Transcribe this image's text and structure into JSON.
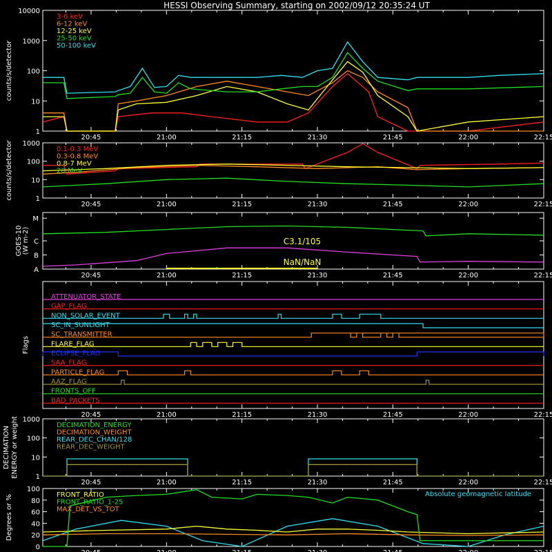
{
  "title": "HESSI Observing Summary, starting on 2002/09/12 20:35:24 UT",
  "time_ticks": [
    "20:45",
    "21:00",
    "21:15",
    "21:30",
    "21:45",
    "22:00",
    "22:15"
  ],
  "colors": {
    "c1": "#ff2020",
    "c2": "#ff8a20",
    "c3": "#ffff30",
    "c4": "#20e020",
    "c5": "#30e0f0",
    "magenta": "#e040e0",
    "blue": "#2030ff",
    "olive": "#a09030",
    "axis": "#ffffff"
  },
  "chart_data": [
    {
      "id": "lc_low",
      "type": "line",
      "ylabel": "counts/s/detector",
      "yscale": "log",
      "ylim": [
        1,
        10000
      ],
      "y_ticks": [
        "1",
        "10",
        "100",
        "1000",
        "10000"
      ],
      "legend": [
        "3-6 keV",
        "6-12 keV",
        "12-25 keV",
        "25-50 keV",
        "50-100 keV"
      ],
      "xlim": [
        20.59,
        22.25
      ],
      "series": [
        {
          "name": "3-6 keV",
          "color": "c1",
          "x": [
            20.59,
            20.66,
            20.67,
            20.83,
            20.84,
            20.95,
            21.05,
            21.15,
            21.3,
            21.4,
            21.47,
            21.55,
            21.6,
            21.67,
            21.7,
            21.8,
            21.83,
            22.0,
            22.25
          ],
          "y": [
            2,
            3,
            1,
            1,
            3,
            4,
            4,
            3,
            2,
            2,
            4,
            30,
            80,
            20,
            3,
            1,
            1,
            1,
            2
          ]
        },
        {
          "name": "6-12 keV",
          "color": "c2",
          "x": [
            20.59,
            20.66,
            20.67,
            20.83,
            20.84,
            20.9,
            21.0,
            21.1,
            21.2,
            21.3,
            21.4,
            21.47,
            21.55,
            21.6,
            21.65,
            21.7,
            21.8,
            21.83,
            22.0,
            22.25
          ],
          "y": [
            4,
            4,
            1,
            1,
            8,
            10,
            15,
            30,
            45,
            30,
            20,
            15,
            40,
            100,
            60,
            20,
            6,
            1,
            1,
            1
          ]
        },
        {
          "name": "12-25 keV",
          "color": "c3",
          "x": [
            20.59,
            20.66,
            20.67,
            20.83,
            20.84,
            20.9,
            21.0,
            21.1,
            21.2,
            21.3,
            21.4,
            21.47,
            21.55,
            21.6,
            21.65,
            21.7,
            21.8,
            21.83,
            22.0,
            22.25
          ],
          "y": [
            3,
            3,
            1,
            1,
            5,
            8,
            9,
            15,
            30,
            20,
            8,
            5,
            50,
            200,
            90,
            15,
            3,
            1,
            2,
            3
          ]
        },
        {
          "name": "25-50 keV",
          "color": "c4",
          "x": [
            20.59,
            20.66,
            20.67,
            20.83,
            20.84,
            20.88,
            20.92,
            20.96,
            21.0,
            21.04,
            21.08,
            21.2,
            21.3,
            21.38,
            21.45,
            21.5,
            21.55,
            21.6,
            21.65,
            21.7,
            21.8,
            21.83,
            22.0,
            22.25
          ],
          "y": [
            40,
            40,
            12,
            14,
            16,
            18,
            60,
            20,
            18,
            40,
            25,
            20,
            20,
            25,
            30,
            30,
            60,
            400,
            120,
            45,
            22,
            25,
            25,
            30
          ]
        },
        {
          "name": "50-100 keV",
          "color": "c5",
          "x": [
            20.59,
            20.66,
            20.67,
            20.83,
            20.84,
            20.88,
            20.92,
            20.96,
            21.0,
            21.04,
            21.08,
            21.2,
            21.3,
            21.38,
            21.45,
            21.5,
            21.55,
            21.6,
            21.65,
            21.7,
            21.8,
            21.83,
            22.0,
            22.1,
            22.25
          ],
          "y": [
            60,
            60,
            18,
            20,
            22,
            30,
            120,
            28,
            30,
            70,
            60,
            60,
            60,
            70,
            60,
            100,
            120,
            900,
            200,
            60,
            50,
            60,
            60,
            70,
            80
          ]
        }
      ]
    },
    {
      "id": "lc_high",
      "type": "line",
      "ylabel": "counts/s/detector",
      "yscale": "log",
      "ylim": [
        1,
        1000
      ],
      "y_ticks": [
        "1",
        "10",
        "100",
        "1000"
      ],
      "legend": [
        "0.1-0.3 MeV",
        "0.3-0.8 MeV",
        "0.8-7 MeV",
        "20 MeV"
      ],
      "xlim": [
        20.59,
        22.25
      ],
      "series": [
        {
          "name": "0.1-0.3 MeV",
          "color": "c1",
          "x": [
            20.59,
            20.66,
            20.67,
            20.83,
            20.84,
            21.1,
            21.11,
            21.45,
            21.46,
            21.6,
            21.65,
            21.7,
            21.83,
            21.84,
            22.1,
            22.25
          ],
          "y": [
            60,
            60,
            20,
            30,
            40,
            50,
            70,
            70,
            40,
            300,
            900,
            300,
            40,
            60,
            70,
            80
          ]
        },
        {
          "name": "0.3-0.8 MeV",
          "color": "c2",
          "x": [
            20.59,
            20.7,
            20.9,
            21.1,
            21.3,
            21.5,
            21.7,
            21.83,
            22.0,
            22.25
          ],
          "y": [
            20,
            25,
            45,
            60,
            50,
            40,
            50,
            35,
            40,
            45
          ]
        },
        {
          "name": "0.8-7 MeV",
          "color": "c3",
          "x": [
            20.59,
            20.8,
            21.0,
            21.2,
            21.4,
            21.6,
            21.8,
            22.0,
            22.25
          ],
          "y": [
            30,
            40,
            60,
            70,
            60,
            50,
            45,
            40,
            45
          ]
        },
        {
          "name": "20 MeV",
          "color": "c4",
          "x": [
            20.59,
            20.8,
            21.0,
            21.2,
            21.4,
            21.6,
            21.8,
            22.0,
            22.25
          ],
          "y": [
            4,
            6,
            10,
            12,
            8,
            6,
            5,
            4,
            6
          ]
        }
      ]
    },
    {
      "id": "goes",
      "type": "line",
      "ylabel": "GOES-10",
      "ylabel2": "(W m-2)",
      "y_ticks": [
        "A",
        "B",
        "C",
        "M"
      ],
      "annotations": [
        "C3.1/105",
        "NaN/NaN"
      ],
      "xlim": [
        20.59,
        22.25
      ],
      "series": [
        {
          "name": "",
          "color": "c4",
          "x": [
            20.59,
            20.8,
            21.0,
            21.2,
            21.4,
            21.6,
            21.8,
            21.85,
            21.86,
            22.0,
            22.25
          ],
          "y": [
            2.5,
            2.6,
            2.8,
            3.0,
            3.05,
            2.95,
            2.75,
            2.7,
            2.35,
            2.5,
            2.4
          ]
        },
        {
          "name": "",
          "color": "magenta",
          "x": [
            20.59,
            20.7,
            20.8,
            20.9,
            21.0,
            21.2,
            21.4,
            21.6,
            21.75,
            21.83,
            21.84,
            22.0,
            22.25
          ],
          "y": [
            0.2,
            0.3,
            0.45,
            0.6,
            1.1,
            1.5,
            1.5,
            1.2,
            1.0,
            0.9,
            0.5,
            0.55,
            0.5
          ]
        }
      ]
    },
    {
      "id": "flags",
      "type": "step",
      "ylabel": "Flags",
      "flag_names": [
        "ATTENUATOR_STATE",
        "GAP_FLAG",
        "NON_SOLAR_EVENT",
        "SC_IN_SUNLIGHT",
        "SC_TRANSMITTER",
        "FLARE_FLAG",
        "ECLIPSE_FLAG",
        "SAA_FLAG",
        "PARTICLE_FLAG",
        "AAZ_FLAG",
        "FRONTS_OFF",
        "BAD_PACKETS"
      ],
      "flag_colors": [
        "magenta",
        "c1",
        "c5",
        "c5",
        "c2",
        "c3",
        "blue",
        "c1",
        "c2",
        "olive",
        "c4",
        "c1"
      ],
      "flag_on_intervals": [
        [],
        [],
        [
          [
            20.99,
            21.01
          ],
          [
            21.06,
            21.07
          ],
          [
            21.09,
            21.1
          ],
          [
            21.37,
            21.38
          ],
          [
            21.55,
            21.58
          ],
          [
            21.64,
            21.71
          ]
        ],
        [
          [
            20.59,
            21.85
          ]
        ],
        [
          [
            21.48,
            22.25
          ],
          [
            21.59,
            21.61
          ],
          [
            21.63,
            21.65
          ],
          [
            21.71,
            21.73
          ],
          [
            21.75,
            21.77
          ]
        ],
        [
          [
            21.08,
            21.1
          ],
          [
            21.12,
            21.15
          ],
          [
            21.17,
            21.2
          ],
          [
            21.22,
            21.25
          ]
        ],
        [
          [
            21.83,
            22.25
          ],
          [
            20.59,
            20.84
          ]
        ],
        [],
        [
          [
            20.84,
            20.87
          ],
          [
            21.06,
            21.08
          ],
          [
            21.55,
            21.58
          ],
          [
            21.64,
            21.67
          ]
        ],
        [
          [
            20.85,
            20.86
          ],
          [
            21.86,
            21.87
          ]
        ],
        [],
        []
      ]
    },
    {
      "id": "decim",
      "type": "step",
      "ylabel": "DECIMATION",
      "ylabel2": "ENERGY or weight",
      "yscale": "log",
      "ylim": [
        1,
        1000
      ],
      "y_ticks": [
        "1",
        "10",
        "100",
        "1000"
      ],
      "legend": [
        "DECIMATION_ENERGY",
        "DECIMATION_WEIGHT",
        "REAR_DEC_CHAN/128",
        "REAR_DEC_WEIGHT"
      ],
      "xlim": [
        20.59,
        22.25
      ],
      "series": [
        {
          "name": "REAR_DEC_CHAN/128",
          "color": "c5",
          "x": [
            20.59,
            20.67,
            20.67,
            21.07,
            21.07,
            21.47,
            21.47,
            21.83,
            21.83,
            22.25
          ],
          "y": [
            1,
            1,
            8,
            8,
            1,
            1,
            8,
            8,
            1,
            1
          ]
        },
        {
          "name": "REAR_DEC_WEIGHT",
          "color": "olive",
          "x": [
            20.59,
            20.67,
            20.67,
            21.07,
            21.07,
            21.47,
            21.47,
            21.83,
            21.83,
            22.25
          ],
          "y": [
            1,
            1,
            4,
            4,
            1,
            1,
            4,
            4,
            1,
            1
          ]
        }
      ]
    },
    {
      "id": "ratio",
      "type": "line",
      "ylabel": "Degrees or %",
      "ylim": [
        0,
        100
      ],
      "y_ticks": [
        "0",
        "20",
        "40",
        "60",
        "80",
        "100"
      ],
      "legend": [
        "FRONT_RATIO",
        "FRONT_RATIO_1-25",
        "MAX_DET_VS_TOT"
      ],
      "annotation": "Absolute geomagnetic latitude",
      "xlim": [
        20.59,
        22.25
      ],
      "series": [
        {
          "name": "FRONT_RATIO",
          "color": "c4",
          "x": [
            20.59,
            20.67,
            20.68,
            20.8,
            20.9,
            21.0,
            21.1,
            21.15,
            21.25,
            21.3,
            21.4,
            21.47,
            21.55,
            21.6,
            21.7,
            21.8,
            21.83,
            21.84,
            22.25
          ],
          "y": [
            0,
            0,
            70,
            85,
            88,
            90,
            98,
            85,
            82,
            90,
            88,
            85,
            75,
            85,
            80,
            60,
            55,
            10,
            10
          ]
        },
        {
          "name": "FRONT_RATIO_1-25",
          "color": "c3",
          "x": [
            20.59,
            20.8,
            21.0,
            21.1,
            21.2,
            21.3,
            21.4,
            21.5,
            21.6,
            21.7,
            21.8,
            22.0,
            22.25
          ],
          "y": [
            25,
            28,
            30,
            35,
            30,
            28,
            25,
            30,
            30,
            28,
            25,
            22,
            25
          ]
        },
        {
          "name": "MAX_DET_VS_TOT",
          "color": "c2",
          "x": [
            20.59,
            20.8,
            21.0,
            21.2,
            21.4,
            21.6,
            21.8,
            22.0,
            22.25
          ],
          "y": [
            20,
            22,
            22,
            21,
            20,
            22,
            20,
            19,
            20
          ]
        },
        {
          "name": "Absolute geomagnetic latitude",
          "color": "c5",
          "x": [
            20.59,
            20.7,
            20.85,
            21.0,
            21.12,
            21.25,
            21.4,
            21.55,
            21.7,
            21.85,
            22.0,
            22.12,
            22.25
          ],
          "y": [
            10,
            30,
            45,
            35,
            10,
            0,
            35,
            48,
            35,
            5,
            0,
            20,
            35
          ]
        }
      ]
    }
  ]
}
